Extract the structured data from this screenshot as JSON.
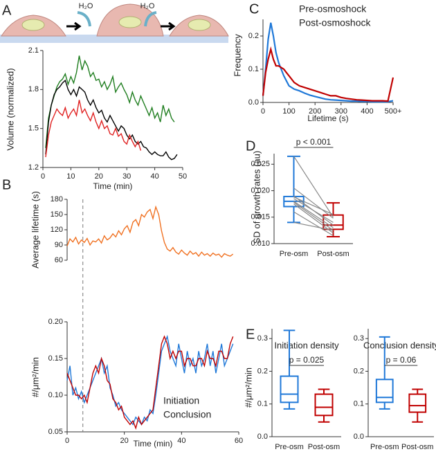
{
  "diagram": {
    "labels": [
      "H₂O",
      "H₂O"
    ]
  },
  "chart_data": [
    {
      "type": "line",
      "panel": "A",
      "xlabel": "Time (min)",
      "ylabel": "Volume (normalized)",
      "xlim": [
        0,
        50
      ],
      "xticks": [
        0,
        10,
        20,
        30,
        40,
        50
      ],
      "ylim": [
        1.2,
        2.1
      ],
      "yticks": [
        1.2,
        1.5,
        1.8,
        2.1
      ],
      "series": [
        {
          "color": "#1e7d1e",
          "x": [
            1,
            2,
            3,
            4,
            5,
            6,
            7,
            8,
            9,
            10,
            11,
            12,
            13,
            14,
            15,
            16,
            17,
            18,
            19,
            20,
            21,
            22,
            23,
            24,
            25,
            26,
            27,
            28,
            29,
            30,
            31,
            32,
            33,
            34,
            35,
            36,
            37,
            38,
            39,
            40,
            41,
            42,
            43,
            44,
            45,
            46,
            47
          ],
          "values": [
            1.35,
            1.58,
            1.68,
            1.75,
            1.82,
            1.86,
            1.88,
            1.92,
            1.84,
            1.9,
            1.85,
            1.93,
            2.06,
            1.95,
            2.02,
            1.98,
            1.9,
            1.93,
            1.87,
            1.88,
            1.82,
            1.86,
            1.8,
            1.84,
            1.9,
            1.78,
            1.82,
            1.85,
            1.8,
            1.76,
            1.7,
            1.78,
            1.72,
            1.68,
            1.75,
            1.7,
            1.65,
            1.6,
            1.66,
            1.58,
            1.62,
            1.55,
            1.68,
            1.6,
            1.65,
            1.58,
            1.55
          ]
        },
        {
          "color": "#000000",
          "x": [
            1,
            2,
            3,
            4,
            5,
            6,
            7,
            8,
            9,
            10,
            11,
            12,
            13,
            14,
            15,
            16,
            17,
            18,
            19,
            20,
            21,
            22,
            23,
            24,
            25,
            26,
            27,
            28,
            29,
            30,
            31,
            32,
            33,
            34,
            35,
            36,
            37,
            38,
            39,
            40,
            41,
            42,
            43,
            44,
            45,
            46,
            47,
            48
          ],
          "values": [
            1.3,
            1.55,
            1.68,
            1.76,
            1.8,
            1.82,
            1.85,
            1.87,
            1.8,
            1.76,
            1.8,
            1.75,
            1.82,
            1.8,
            1.78,
            1.72,
            1.68,
            1.72,
            1.66,
            1.62,
            1.64,
            1.58,
            1.55,
            1.6,
            1.56,
            1.52,
            1.48,
            1.52,
            1.5,
            1.45,
            1.42,
            1.45,
            1.4,
            1.38,
            1.4,
            1.36,
            1.35,
            1.32,
            1.3,
            1.32,
            1.3,
            1.29,
            1.29,
            1.32,
            1.28,
            1.26,
            1.27,
            1.3
          ]
        },
        {
          "color": "#e02020",
          "x": [
            1,
            2,
            3,
            4,
            5,
            6,
            7,
            8,
            9,
            10,
            11,
            12,
            13,
            14,
            15,
            16,
            17,
            18,
            19,
            20,
            21,
            22,
            23,
            24,
            25,
            26,
            27,
            28,
            29,
            30,
            31,
            32,
            33,
            34,
            35
          ],
          "values": [
            1.28,
            1.45,
            1.55,
            1.6,
            1.65,
            1.62,
            1.6,
            1.66,
            1.58,
            1.62,
            1.65,
            1.6,
            1.72,
            1.62,
            1.65,
            1.6,
            1.56,
            1.62,
            1.55,
            1.5,
            1.56,
            1.5,
            1.52,
            1.46,
            1.45,
            1.5,
            1.44,
            1.46,
            1.4,
            1.38,
            1.45,
            1.4,
            1.36,
            1.4,
            1.33
          ]
        }
      ]
    },
    {
      "type": "line",
      "panel": "B",
      "ylabel": "Average lifetime (s)",
      "xlim": [
        0,
        60
      ],
      "ylim": [
        60,
        180
      ],
      "yticks": [
        60,
        90,
        120,
        150,
        180
      ],
      "x": [
        0,
        1,
        2,
        3,
        4,
        5,
        6,
        7,
        8,
        9,
        10,
        11,
        12,
        13,
        14,
        15,
        16,
        17,
        18,
        19,
        20,
        21,
        22,
        23,
        24,
        25,
        26,
        27,
        28,
        29,
        30,
        31,
        32,
        33,
        34,
        35,
        36,
        37,
        38,
        39,
        40,
        41,
        42,
        43,
        44,
        45,
        46,
        47,
        48,
        49,
        50,
        51,
        52,
        53,
        54,
        55,
        56,
        57,
        58
      ],
      "series": [
        {
          "color": "#f07020",
          "values": [
            88,
            102,
            96,
            105,
            92,
            100,
            95,
            103,
            90,
            98,
            96,
            102,
            94,
            108,
            100,
            104,
            112,
            106,
            118,
            110,
            122,
            128,
            115,
            135,
            140,
            128,
            150,
            145,
            155,
            160,
            142,
            165,
            150,
            118,
            95,
            82,
            78,
            85,
            76,
            72,
            80,
            74,
            70,
            78,
            72,
            75,
            68,
            76,
            70,
            73,
            68,
            74,
            70,
            72,
            66,
            73,
            70,
            68,
            72
          ]
        }
      ]
    },
    {
      "type": "line",
      "xlabel": "Time (min)",
      "ylabel": "#/μm²/min",
      "vline_x": 5.5,
      "xlim": [
        0,
        60
      ],
      "xticks": [
        0,
        20,
        40,
        60
      ],
      "ylim": [
        0.05,
        0.2
      ],
      "yticks": [
        0.05,
        {
          "value": 0.1,
          "label": "0.10"
        },
        0.15,
        {
          "value": 0.2,
          "label": "0.20"
        }
      ],
      "x": [
        0,
        1,
        2,
        3,
        4,
        5,
        6,
        7,
        8,
        9,
        10,
        11,
        12,
        13,
        14,
        15,
        16,
        17,
        18,
        19,
        20,
        21,
        22,
        23,
        24,
        25,
        26,
        27,
        28,
        29,
        30,
        31,
        32,
        33,
        34,
        35,
        36,
        37,
        38,
        39,
        40,
        41,
        42,
        43,
        44,
        45,
        46,
        47,
        48,
        49,
        50,
        51,
        52,
        53,
        54,
        55,
        56,
        57,
        58
      ],
      "series": [
        {
          "name": "Initiation",
          "color": "#1f78d8",
          "values": [
            0.12,
            0.14,
            0.1,
            0.11,
            0.095,
            0.105,
            0.09,
            0.1,
            0.11,
            0.12,
            0.13,
            0.14,
            0.15,
            0.13,
            0.14,
            0.11,
            0.1,
            0.085,
            0.09,
            0.08,
            0.075,
            0.07,
            0.065,
            0.06,
            0.07,
            0.065,
            0.06,
            0.07,
            0.065,
            0.08,
            0.075,
            0.1,
            0.13,
            0.16,
            0.17,
            0.18,
            0.16,
            0.15,
            0.14,
            0.17,
            0.15,
            0.13,
            0.16,
            0.14,
            0.15,
            0.13,
            0.16,
            0.14,
            0.15,
            0.17,
            0.14,
            0.16,
            0.13,
            0.15,
            0.17,
            0.14,
            0.15,
            0.16,
            0.17
          ]
        },
        {
          "name": "Conclusion",
          "color": "#c00000",
          "values": [
            0.13,
            0.12,
            0.11,
            0.1,
            0.1,
            0.095,
            0.1,
            0.09,
            0.11,
            0.13,
            0.14,
            0.13,
            0.15,
            0.14,
            0.12,
            0.115,
            0.095,
            0.09,
            0.08,
            0.085,
            0.07,
            0.065,
            0.06,
            0.065,
            0.055,
            0.07,
            0.06,
            0.065,
            0.07,
            0.075,
            0.08,
            0.11,
            0.14,
            0.17,
            0.18,
            0.17,
            0.15,
            0.16,
            0.15,
            0.16,
            0.16,
            0.14,
            0.15,
            0.15,
            0.14,
            0.14,
            0.15,
            0.15,
            0.14,
            0.16,
            0.15,
            0.15,
            0.14,
            0.16,
            0.16,
            0.15,
            0.15,
            0.17,
            0.18
          ]
        }
      ]
    },
    {
      "type": "line",
      "panel": "C",
      "xlabel": "Lifetime (s)",
      "ylabel": "Frequency",
      "xlim": [
        0,
        500
      ],
      "xticks": [
        0,
        100,
        200,
        300,
        400,
        {
          "value": 500,
          "label": "500+"
        }
      ],
      "ylim": [
        0,
        0.25
      ],
      "yticks": [
        {
          "value": 0,
          "label": "0.0"
        },
        0.1,
        0.2
      ],
      "x": [
        0,
        10,
        20,
        30,
        40,
        50,
        60,
        70,
        80,
        90,
        100,
        120,
        140,
        160,
        180,
        200,
        220,
        240,
        260,
        280,
        300,
        320,
        340,
        360,
        380,
        400,
        420,
        440,
        460,
        480,
        500
      ],
      "series": [
        {
          "name": "Pre-osmoshock",
          "color": "#1f78d8",
          "values": [
            0.02,
            0.1,
            0.19,
            0.24,
            0.2,
            0.15,
            0.12,
            0.1,
            0.08,
            0.065,
            0.05,
            0.04,
            0.035,
            0.028,
            0.022,
            0.018,
            0.014,
            0.01,
            0.008,
            0.007,
            0.006,
            0.005,
            0.004,
            0.004,
            0.003,
            0.003,
            0.002,
            0.002,
            0.002,
            0.002,
            0.005
          ]
        },
        {
          "name": "Post-osmoshock",
          "color": "#c00000",
          "values": [
            0.02,
            0.09,
            0.13,
            0.16,
            0.13,
            0.11,
            0.11,
            0.105,
            0.1,
            0.09,
            0.08,
            0.06,
            0.05,
            0.045,
            0.04,
            0.035,
            0.03,
            0.025,
            0.02,
            0.02,
            0.015,
            0.012,
            0.01,
            0.008,
            0.007,
            0.006,
            0.005,
            0.005,
            0.005,
            0.004,
            0.075
          ]
        }
      ]
    },
    {
      "type": "box",
      "panel": "D",
      "ylabel": "SD of growth rates (au)",
      "annotation": "p < 0.001",
      "categories": [
        "Pre-osm",
        "Post-osm"
      ],
      "ylim": [
        0.01,
        0.027
      ],
      "yticks": [
        {
          "value": 0.01,
          "label": "0.010"
        },
        0.015,
        {
          "value": 0.02,
          "label": "0.020"
        },
        0.025
      ],
      "boxes": [
        {
          "min": 0.014,
          "q1": 0.017,
          "median": 0.018,
          "q3": 0.0189,
          "max": 0.0265,
          "color": "#1f78d8"
        },
        {
          "min": 0.0113,
          "q1": 0.0127,
          "median": 0.0135,
          "q3": 0.0154,
          "max": 0.0177,
          "color": "#c00000"
        }
      ],
      "pairs_color": "#888888",
      "pairs": [
        [
          0.0265,
          0.015
        ],
        [
          0.0205,
          0.0148
        ],
        [
          0.019,
          0.0135
        ],
        [
          0.0188,
          0.0155
        ],
        [
          0.0185,
          0.014
        ],
        [
          0.018,
          0.013
        ],
        [
          0.0178,
          0.0125
        ],
        [
          0.0175,
          0.012
        ],
        [
          0.016,
          0.0115
        ],
        [
          0.014,
          0.0125
        ]
      ]
    },
    {
      "type": "box",
      "panel": "E",
      "title": "Initiation density",
      "ylabel": "#/μm²/min",
      "annotation": "p = 0.025",
      "categories": [
        "Pre-osm",
        "Post-osm"
      ],
      "ylim": [
        0,
        0.33
      ],
      "yticks": [
        {
          "value": 0,
          "label": "0.0"
        },
        0.1,
        0.2,
        0.3
      ],
      "boxes": [
        {
          "min": 0.085,
          "q1": 0.105,
          "median": 0.13,
          "q3": 0.185,
          "max": 0.325,
          "color": "#1f78d8"
        },
        {
          "min": 0.045,
          "q1": 0.065,
          "median": 0.09,
          "q3": 0.13,
          "max": 0.145,
          "color": "#c00000"
        }
      ]
    },
    {
      "type": "box",
      "title": "Conclusion density",
      "annotation": "p = 0.06",
      "categories": [
        "Pre-osm",
        "Post-osm"
      ],
      "ylim": [
        0,
        0.33
      ],
      "yticks": [
        {
          "value": 0,
          "label": "0.0"
        },
        0.1,
        0.2,
        0.3
      ],
      "boxes": [
        {
          "min": 0.085,
          "q1": 0.105,
          "median": 0.12,
          "q3": 0.175,
          "max": 0.305,
          "color": "#1f78d8"
        },
        {
          "min": 0.045,
          "q1": 0.075,
          "median": 0.095,
          "q3": 0.13,
          "max": 0.145,
          "color": "#c00000"
        }
      ]
    }
  ]
}
